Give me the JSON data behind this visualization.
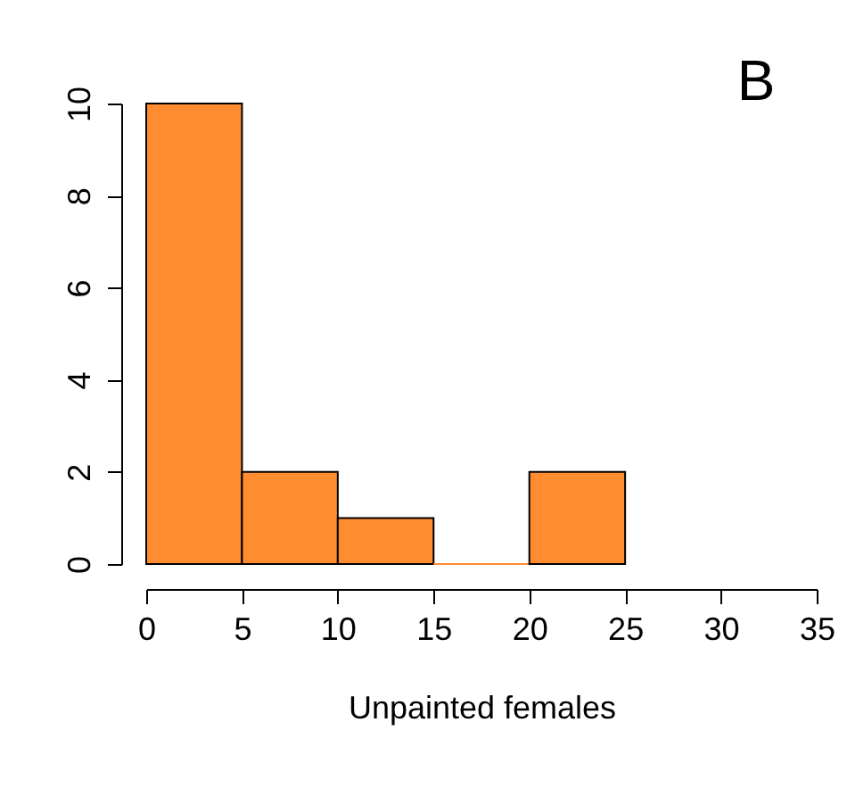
{
  "chart_data": {
    "type": "histogram",
    "xlabel": "Unpainted females",
    "annotations": [
      "B"
    ],
    "bins": [
      0,
      5,
      10,
      15,
      20,
      25
    ],
    "values": [
      10,
      2,
      1,
      0,
      2
    ],
    "color": "#ff8c2f",
    "xlim": [
      0,
      35
    ],
    "xticks": [
      0,
      5,
      10,
      15,
      20,
      25,
      30,
      35
    ],
    "ylim": [
      0,
      10
    ],
    "yticks": [
      0,
      2,
      4,
      6,
      8,
      10
    ],
    "grid": false
  }
}
